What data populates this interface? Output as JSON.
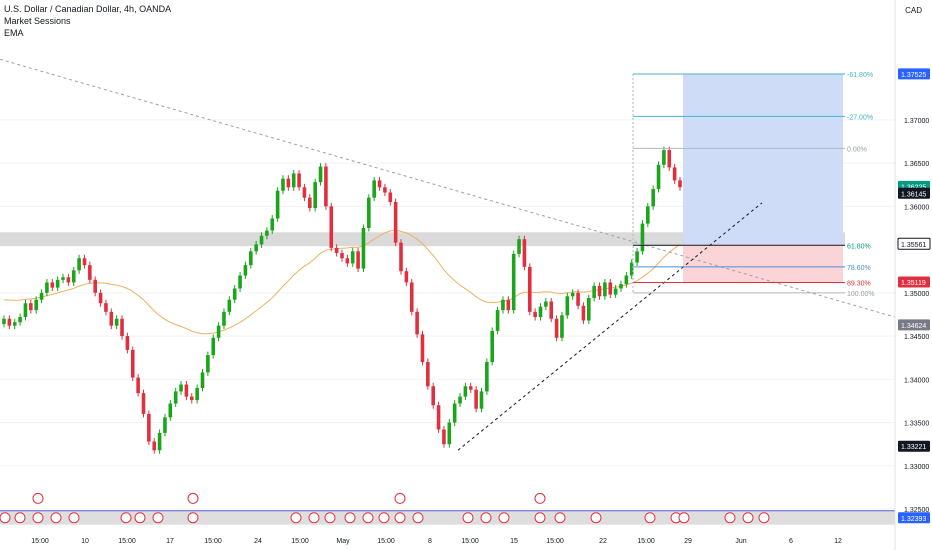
{
  "header": {
    "symbol": "U.S. Dollar / Canadian Dollar, 4h, OANDA",
    "indicator_1": "Market Sessions",
    "indicator_2": "EMA",
    "currency": "CAD"
  },
  "colors": {
    "up": "#089981",
    "up_candle": "#1aa51a",
    "down": "#e0303f",
    "ema": "#f0b060",
    "fib_blue": "#4b8fd1",
    "fib_teal": "#3fb7c3",
    "target_zone": "#cfdcf8",
    "stop_zone": "#fbd4d8",
    "resistance_band": "#d6d6d6"
  },
  "chart_data": {
    "type": "candlestick",
    "title": "U.S. Dollar / Canadian Dollar, 4h, OANDA",
    "y_axis_ticks": [
      "1.37000",
      "1.36500",
      "1.36000",
      "1.35000",
      "1.34500",
      "1.34000",
      "1.33500",
      "1.33000",
      "1.32500"
    ],
    "ylim": [
      1.322,
      1.379
    ],
    "price_labels": [
      {
        "value": "1.37525",
        "price": 1.37525,
        "style": "blue"
      },
      {
        "value": "1.36225",
        "price": 1.36225,
        "style": "green"
      },
      {
        "value": "1.36145",
        "price": 1.36145,
        "style": "black"
      },
      {
        "value": "1.35561",
        "price": 1.35561,
        "style": "outline"
      },
      {
        "value": "1.35119",
        "price": 1.35119,
        "style": "red"
      },
      {
        "value": "1.34624",
        "price": 1.34624,
        "style": "gray"
      },
      {
        "value": "1.33221",
        "price": 1.33221,
        "style": "black"
      },
      {
        "value": "1.32393",
        "price": 1.32393,
        "style": "blue"
      }
    ],
    "x_axis_labels": [
      "15:00",
      "10",
      "15:00",
      "17",
      "15:00",
      "24",
      "15:00",
      "May",
      "15:00",
      "8",
      "15:00",
      "15",
      "15:00",
      "22",
      "15:00",
      "29",
      "Jun",
      "6",
      "12"
    ],
    "fib_levels": [
      {
        "label": "-61.80%",
        "price": 1.3753
      },
      {
        "label": "-27.00%",
        "price": 1.3704
      },
      {
        "label": "0.00%",
        "price": 1.3667
      },
      {
        "label": "61.80%",
        "price": 1.3555
      },
      {
        "label": "78.60%",
        "price": 1.353
      },
      {
        "label": "89.30%",
        "price": 1.3512
      },
      {
        "label": "100.00%",
        "price": 1.35
      }
    ],
    "position": {
      "entry": 1.3556,
      "target": 1.3753,
      "stop": 1.3512
    },
    "resistance_zone": [
      1.3554,
      1.357
    ],
    "close_series": [
      1.347,
      1.3462,
      1.3466,
      1.3472,
      1.3488,
      1.348,
      1.3492,
      1.35,
      1.3512,
      1.3506,
      1.3515,
      1.3518,
      1.3512,
      1.3526,
      1.354,
      1.3532,
      1.3515,
      1.35,
      1.3488,
      1.3478,
      1.3462,
      1.347,
      1.345,
      1.3434,
      1.3402,
      1.3384,
      1.336,
      1.3328,
      1.3318,
      1.3338,
      1.3356,
      1.3372,
      1.3386,
      1.3394,
      1.338,
      1.3376,
      1.339,
      1.3408,
      1.3428,
      1.3448,
      1.3462,
      1.3478,
      1.3492,
      1.3505,
      1.352,
      1.3532,
      1.3548,
      1.3556,
      1.3566,
      1.3572,
      1.3586,
      1.3618,
      1.3632,
      1.3622,
      1.3638,
      1.3622,
      1.361,
      1.3598,
      1.3628,
      1.3646,
      1.36,
      1.3552,
      1.3546,
      1.354,
      1.3534,
      1.3548,
      1.3528,
      1.3575,
      1.361,
      1.363,
      1.3622,
      1.3616,
      1.3605,
      1.3558,
      1.3525,
      1.3512,
      1.3478,
      1.3452,
      1.342,
      1.3392,
      1.337,
      1.3342,
      1.3325,
      1.335,
      1.3372,
      1.338,
      1.3392,
      1.3388,
      1.3366,
      1.3386,
      1.342,
      1.3456,
      1.348,
      1.3492,
      1.348,
      1.3545,
      1.3562,
      1.353,
      1.3478,
      1.3472,
      1.3484,
      1.349,
      1.347,
      1.3448,
      1.3474,
      1.3496,
      1.35,
      1.3485,
      1.3468,
      1.3494,
      1.3508,
      1.3496,
      1.3512,
      1.3498,
      1.3505,
      1.351,
      1.352,
      1.3535,
      1.3548,
      1.358,
      1.36,
      1.362,
      1.3648,
      1.3665,
      1.3645,
      1.363,
      1.3622
    ],
    "markers_row": [
      1.324,
      1.326
    ]
  }
}
